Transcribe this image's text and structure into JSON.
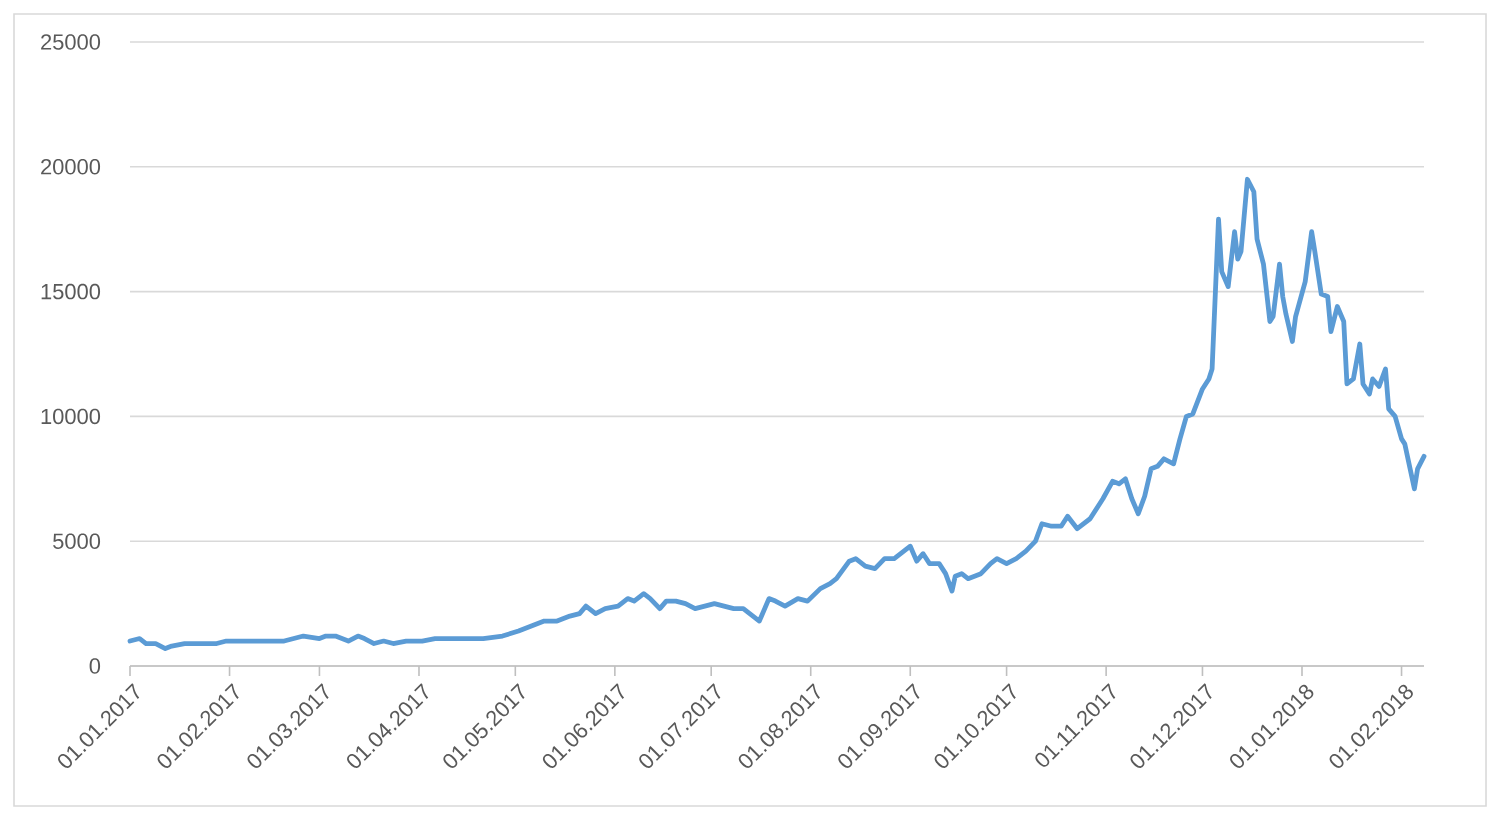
{
  "chart_data": {
    "type": "line",
    "color": "#5b9bd5",
    "x": [
      "2017-01-01",
      "2017-01-04",
      "2017-01-06",
      "2017-01-09",
      "2017-01-12",
      "2017-01-14",
      "2017-01-18",
      "2017-01-23",
      "2017-01-28",
      "2017-01-31",
      "2017-02-06",
      "2017-02-10",
      "2017-02-18",
      "2017-02-24",
      "2017-03-01",
      "2017-03-03",
      "2017-03-06",
      "2017-03-10",
      "2017-03-13",
      "2017-03-15",
      "2017-03-18",
      "2017-03-21",
      "2017-03-24",
      "2017-03-28",
      "2017-04-02",
      "2017-04-06",
      "2017-04-15",
      "2017-04-21",
      "2017-04-27",
      "2017-05-02",
      "2017-05-06",
      "2017-05-10",
      "2017-05-14",
      "2017-05-18",
      "2017-05-21",
      "2017-05-23",
      "2017-05-26",
      "2017-05-29",
      "2017-06-02",
      "2017-06-05",
      "2017-06-07",
      "2017-06-10",
      "2017-06-12",
      "2017-06-15",
      "2017-06-17",
      "2017-06-20",
      "2017-06-23",
      "2017-06-26",
      "2017-06-29",
      "2017-07-02",
      "2017-07-05",
      "2017-07-08",
      "2017-07-11",
      "2017-07-14",
      "2017-07-16",
      "2017-07-19",
      "2017-07-21",
      "2017-07-24",
      "2017-07-28",
      "2017-07-31",
      "2017-08-04",
      "2017-08-07",
      "2017-08-09",
      "2017-08-13",
      "2017-08-15",
      "2017-08-18",
      "2017-08-21",
      "2017-08-24",
      "2017-08-27",
      "2017-08-30",
      "2017-09-01",
      "2017-09-03",
      "2017-09-05",
      "2017-09-07",
      "2017-09-10",
      "2017-09-12",
      "2017-09-14",
      "2017-09-15",
      "2017-09-17",
      "2017-09-19",
      "2017-09-23",
      "2017-09-26",
      "2017-09-28",
      "2017-10-01",
      "2017-10-04",
      "2017-10-07",
      "2017-10-10",
      "2017-10-12",
      "2017-10-15",
      "2017-10-18",
      "2017-10-20",
      "2017-10-23",
      "2017-10-27",
      "2017-10-31",
      "2017-11-03",
      "2017-11-05",
      "2017-11-07",
      "2017-11-09",
      "2017-11-11",
      "2017-11-13",
      "2017-11-15",
      "2017-11-17",
      "2017-11-19",
      "2017-11-22",
      "2017-11-24",
      "2017-11-26",
      "2017-11-28",
      "2017-12-01",
      "2017-12-03",
      "2017-12-04",
      "2017-12-06",
      "2017-12-07",
      "2017-12-09",
      "2017-12-11",
      "2017-12-12",
      "2017-12-13",
      "2017-12-15",
      "2017-12-17",
      "2017-12-18",
      "2017-12-20",
      "2017-12-22",
      "2017-12-23",
      "2017-12-25",
      "2017-12-26",
      "2017-12-27",
      "2017-12-29",
      "2017-12-30",
      "2018-01-02",
      "2018-01-04",
      "2018-01-05",
      "2018-01-07",
      "2018-01-09",
      "2018-01-10",
      "2018-01-12",
      "2018-01-14",
      "2018-01-15",
      "2018-01-17",
      "2018-01-19",
      "2018-01-20",
      "2018-01-22",
      "2018-01-23",
      "2018-01-25",
      "2018-01-27",
      "2018-01-28",
      "2018-01-30",
      "2018-02-01",
      "2018-02-02",
      "2018-02-05",
      "2018-02-06",
      "2018-02-08"
    ],
    "values": [
      1000,
      1100,
      900,
      900,
      700,
      800,
      900,
      900,
      900,
      1000,
      1000,
      1000,
      1000,
      1200,
      1100,
      1200,
      1200,
      1000,
      1200,
      1100,
      900,
      1000,
      900,
      1000,
      1000,
      1100,
      1100,
      1100,
      1200,
      1400,
      1600,
      1800,
      1800,
      2000,
      2100,
      2400,
      2100,
      2300,
      2400,
      2700,
      2600,
      2900,
      2700,
      2300,
      2600,
      2600,
      2500,
      2300,
      2400,
      2500,
      2400,
      2300,
      2300,
      2000,
      1800,
      2700,
      2600,
      2400,
      2700,
      2600,
      3100,
      3300,
      3500,
      4200,
      4300,
      4000,
      3900,
      4300,
      4300,
      4600,
      4800,
      4200,
      4500,
      4100,
      4100,
      3700,
      3000,
      3600,
      3700,
      3500,
      3700,
      4100,
      4300,
      4100,
      4300,
      4600,
      5000,
      5700,
      5600,
      5600,
      6000,
      5500,
      5900,
      6700,
      7400,
      7300,
      7500,
      6700,
      6100,
      6800,
      7900,
      8000,
      8300,
      8100,
      9100,
      10000,
      10100,
      11100,
      11500,
      11900,
      17900,
      15800,
      15200,
      17400,
      16300,
      16600,
      19500,
      19000,
      17100,
      16100,
      13800,
      14000,
      16100,
      14800,
      14100,
      13000,
      14000,
      15400,
      17400,
      16600,
      14900,
      14800,
      13400,
      14400,
      13800,
      11300,
      11500,
      12900,
      11300,
      10900,
      11500,
      11200,
      11900,
      10300,
      10000,
      9100,
      8900,
      7100,
      7900,
      8400
    ],
    "xlim": [
      "2017-01-01",
      "2018-02-08"
    ],
    "ylim": [
      0,
      25000
    ],
    "xticks": [
      {
        "value": "2017-01-01",
        "label": "01.01.2017"
      },
      {
        "value": "2017-02-01",
        "label": "01.02.2017"
      },
      {
        "value": "2017-03-01",
        "label": "01.03.2017"
      },
      {
        "value": "2017-04-01",
        "label": "01.04.2017"
      },
      {
        "value": "2017-05-01",
        "label": "01.05.2017"
      },
      {
        "value": "2017-06-01",
        "label": "01.06.2017"
      },
      {
        "value": "2017-07-01",
        "label": "01.07.2017"
      },
      {
        "value": "2017-08-01",
        "label": "01.08.2017"
      },
      {
        "value": "2017-09-01",
        "label": "01.09.2017"
      },
      {
        "value": "2017-10-01",
        "label": "01.10.2017"
      },
      {
        "value": "2017-11-01",
        "label": "01.11.2017"
      },
      {
        "value": "2017-12-01",
        "label": "01.12.2017"
      },
      {
        "value": "2018-01-01",
        "label": "01.01.2018"
      },
      {
        "value": "2018-02-01",
        "label": "01.02.2018"
      }
    ],
    "yticks": [
      0,
      5000,
      10000,
      15000,
      20000,
      25000
    ],
    "grid": "y"
  }
}
